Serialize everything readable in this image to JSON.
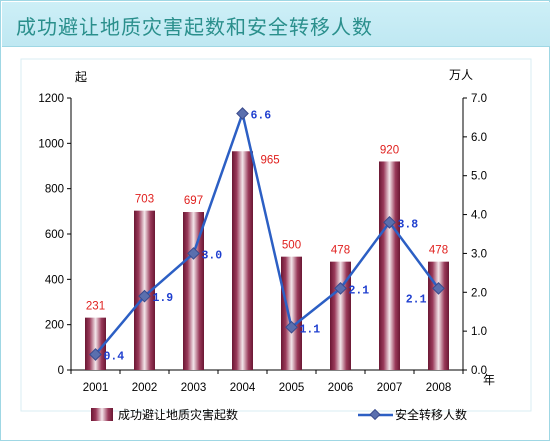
{
  "title": "成功避让地质灾害起数和安全转移人数",
  "chart_data": {
    "type": "bar",
    "categories": [
      "2001",
      "2002",
      "2003",
      "2004",
      "2005",
      "2006",
      "2007",
      "2008"
    ],
    "series": [
      {
        "name": "成功避让地质灾害起数",
        "type": "bar",
        "axis": "left",
        "values": [
          231,
          703,
          697,
          965,
          500,
          478,
          920,
          478
        ],
        "labels": [
          "231",
          "703",
          "697",
          "965",
          "500",
          "478",
          "920",
          "478"
        ],
        "color": "#8c2a4a"
      },
      {
        "name": "安全转移人数",
        "type": "line",
        "axis": "right",
        "values": [
          0.4,
          1.9,
          3.0,
          6.6,
          1.1,
          2.1,
          3.8,
          2.1
        ],
        "labels": [
          "0.4",
          "1.9",
          "3.0",
          "6.6",
          "1.1",
          "2.1",
          "3.8",
          "2.1"
        ],
        "color": "#2c5fc4"
      }
    ],
    "y_left": {
      "unit": "起",
      "ylim": [
        0,
        1200
      ],
      "ticks": [
        "0",
        "200",
        "400",
        "600",
        "800",
        "1000",
        "1200"
      ]
    },
    "y_right": {
      "unit": "万人",
      "ylim": [
        0,
        7
      ],
      "ticks": [
        "0.0",
        "1.0",
        "2.0",
        "3.0",
        "4.0",
        "5.0",
        "6.0",
        "7.0"
      ]
    },
    "x_unit": "年",
    "grid": false,
    "legend_position": "bottom"
  }
}
